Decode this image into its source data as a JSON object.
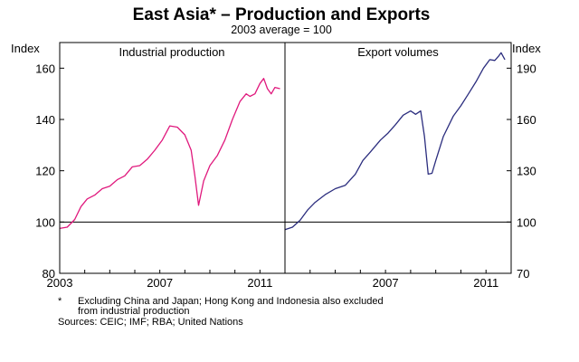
{
  "chart_data": [
    {
      "type": "line",
      "panel_label": "Industrial production",
      "axis_label": "Index",
      "ylim": [
        80,
        170
      ],
      "yticks": [
        80,
        100,
        120,
        140,
        160
      ],
      "xlim": [
        2003.0,
        2012.0
      ],
      "xtick_values": [
        2003,
        2007,
        2011
      ],
      "xtick_labels": [
        "2003",
        "2007",
        "2011"
      ],
      "reference_line": 100,
      "color": "#e0197d",
      "points": [
        [
          2003.0,
          97.5
        ],
        [
          2003.3,
          98.0
        ],
        [
          2003.6,
          101.0
        ],
        [
          2003.85,
          106.0
        ],
        [
          2004.1,
          109.0
        ],
        [
          2004.4,
          110.5
        ],
        [
          2004.7,
          113.0
        ],
        [
          2005.0,
          114.0
        ],
        [
          2005.3,
          116.5
        ],
        [
          2005.6,
          118.0
        ],
        [
          2005.9,
          121.5
        ],
        [
          2006.2,
          122.0
        ],
        [
          2006.5,
          124.5
        ],
        [
          2006.8,
          128.0
        ],
        [
          2007.1,
          132.0
        ],
        [
          2007.4,
          137.5
        ],
        [
          2007.7,
          137.0
        ],
        [
          2008.0,
          134.0
        ],
        [
          2008.25,
          128.0
        ],
        [
          2008.4,
          118.0
        ],
        [
          2008.55,
          106.5
        ],
        [
          2008.75,
          116.0
        ],
        [
          2009.0,
          122.0
        ],
        [
          2009.3,
          126.0
        ],
        [
          2009.6,
          132.0
        ],
        [
          2009.9,
          140.0
        ],
        [
          2010.2,
          147.0
        ],
        [
          2010.45,
          150.0
        ],
        [
          2010.6,
          149.0
        ],
        [
          2010.8,
          150.0
        ],
        [
          2011.0,
          154.0
        ],
        [
          2011.15,
          156.0
        ],
        [
          2011.3,
          152.0
        ],
        [
          2011.45,
          150.0
        ],
        [
          2011.6,
          152.5
        ],
        [
          2011.8,
          152.0
        ]
      ]
    },
    {
      "type": "line",
      "panel_label": "Export volumes",
      "axis_label": "Index",
      "ylim": [
        70,
        205
      ],
      "yticks": [
        70,
        100,
        130,
        160,
        190
      ],
      "xlim": [
        2003.0,
        2012.0
      ],
      "xtick_values": [
        2007,
        2011
      ],
      "xtick_labels": [
        "2007",
        "2011"
      ],
      "reference_line": 100,
      "color": "#2b2d7e",
      "points": [
        [
          2003.0,
          95.5
        ],
        [
          2003.3,
          97.0
        ],
        [
          2003.6,
          101.0
        ],
        [
          2003.9,
          107.0
        ],
        [
          2004.2,
          111.5
        ],
        [
          2004.6,
          116.0
        ],
        [
          2005.0,
          119.5
        ],
        [
          2005.4,
          121.5
        ],
        [
          2005.8,
          128.0
        ],
        [
          2006.1,
          136.0
        ],
        [
          2006.4,
          141.0
        ],
        [
          2006.8,
          148.0
        ],
        [
          2007.1,
          152.0
        ],
        [
          2007.4,
          157.0
        ],
        [
          2007.7,
          162.5
        ],
        [
          2008.0,
          165.0
        ],
        [
          2008.2,
          163.0
        ],
        [
          2008.4,
          165.0
        ],
        [
          2008.55,
          150.0
        ],
        [
          2008.7,
          128.0
        ],
        [
          2008.85,
          128.5
        ],
        [
          2009.0,
          136.0
        ],
        [
          2009.3,
          150.0
        ],
        [
          2009.7,
          162.0
        ],
        [
          2010.0,
          168.0
        ],
        [
          2010.3,
          175.0
        ],
        [
          2010.6,
          182.0
        ],
        [
          2010.9,
          190.0
        ],
        [
          2011.15,
          195.0
        ],
        [
          2011.35,
          194.5
        ],
        [
          2011.5,
          197.0
        ],
        [
          2011.6,
          199.0
        ],
        [
          2011.75,
          195.0
        ]
      ]
    }
  ],
  "text": {
    "title": "East Asia* – Production and Exports",
    "subtitle": "2003 average = 100",
    "footnote_marker": "*",
    "footnote_line1": "Excluding China and Japan; Hong Kong and Indonesia also excluded",
    "footnote_line2": "from industrial production",
    "sources": "Sources: CEIC; IMF; RBA; United Nations"
  }
}
